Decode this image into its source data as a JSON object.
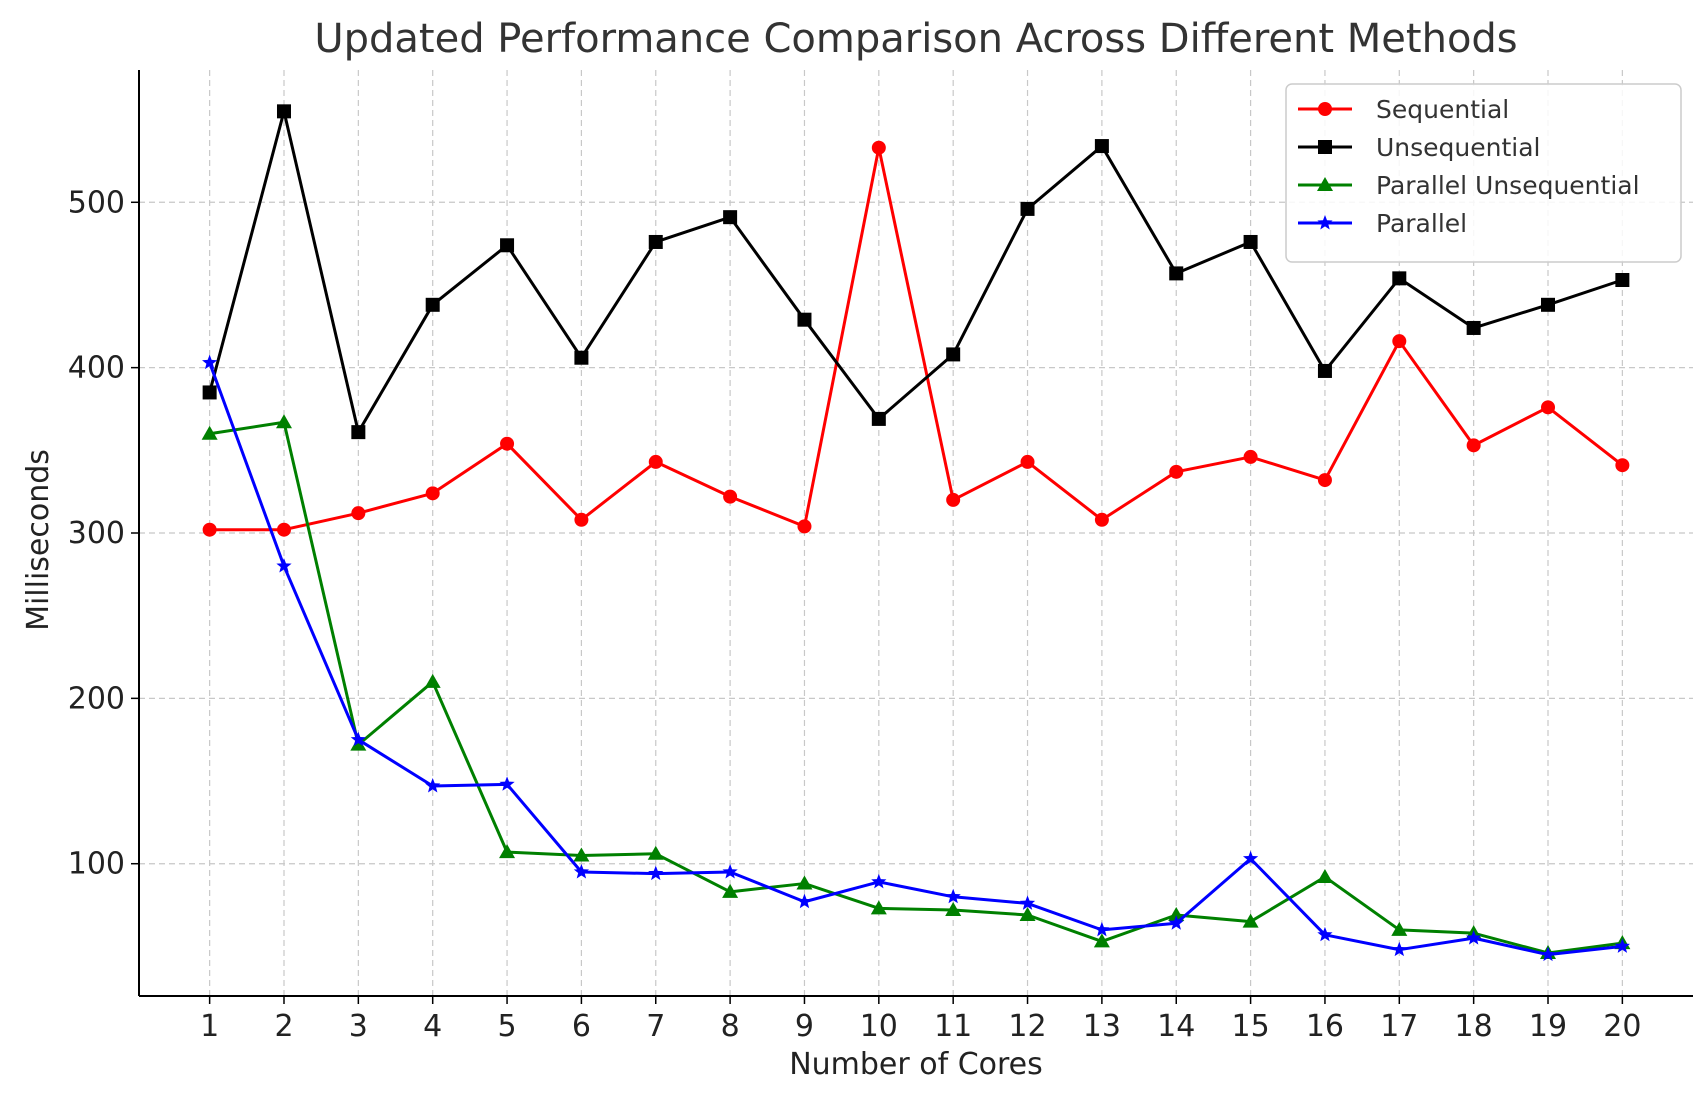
{
  "chart_data": {
    "type": "line",
    "title": "Updated Performance Comparison Across Different Methods",
    "xlabel": "Number of Cores",
    "ylabel": "Milliseconds",
    "x": [
      1,
      2,
      3,
      4,
      5,
      6,
      7,
      8,
      9,
      10,
      11,
      12,
      13,
      14,
      15,
      16,
      17,
      18,
      19,
      20
    ],
    "xlim": [
      0.05,
      20.95
    ],
    "ylim": [
      20,
      580
    ],
    "yticks": [
      100,
      200,
      300,
      400,
      500
    ],
    "grid": true,
    "legend_position": "top-right",
    "series": [
      {
        "name": "Sequential",
        "color": "#ff0000",
        "marker": "circle",
        "values": [
          302,
          302,
          312,
          324,
          354,
          308,
          343,
          322,
          304,
          533,
          320,
          343,
          308,
          337,
          346,
          332,
          416,
          353,
          376,
          341
        ]
      },
      {
        "name": "Unsequential",
        "color": "#000000",
        "marker": "square",
        "values": [
          385,
          555,
          361,
          438,
          474,
          406,
          476,
          491,
          429,
          369,
          408,
          496,
          534,
          457,
          476,
          398,
          454,
          424,
          438,
          453
        ]
      },
      {
        "name": "Parallel Unsequential",
        "color": "#008000",
        "marker": "triangle",
        "values": [
          360,
          367,
          172,
          210,
          107,
          105,
          106,
          83,
          88,
          73,
          72,
          69,
          53,
          69,
          65,
          92,
          60,
          58,
          46,
          52
        ]
      },
      {
        "name": "Parallel",
        "color": "#0000ff",
        "marker": "star",
        "values": [
          403,
          280,
          175,
          147,
          148,
          95,
          94,
          95,
          77,
          89,
          80,
          76,
          60,
          64,
          103,
          57,
          48,
          55,
          45,
          50
        ]
      }
    ]
  }
}
